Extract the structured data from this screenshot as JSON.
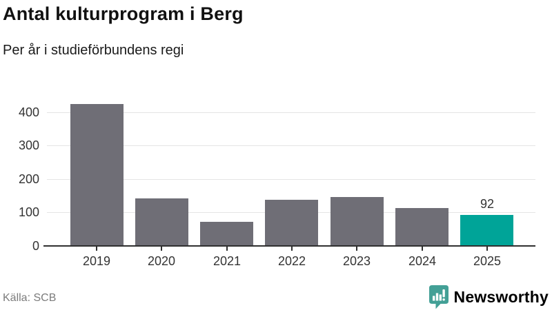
{
  "header": {
    "title": "Antal kulturprogram i Berg",
    "subtitle": "Per år i studieförbundens regi"
  },
  "chart_data": {
    "type": "bar",
    "title": "Antal kulturprogram i Berg",
    "subtitle": "Per år i studieförbundens regi",
    "categories": [
      "2019",
      "2020",
      "2021",
      "2022",
      "2023",
      "2024",
      "2025"
    ],
    "values": [
      424,
      143,
      72,
      139,
      146,
      113,
      92
    ],
    "yticks": [
      0,
      100,
      200,
      300,
      400
    ],
    "ylim": [
      0,
      447
    ],
    "grid": true,
    "legend": "none",
    "bar_color": "#6f6e76",
    "highlight_color": "#00a498",
    "highlight_index": 6,
    "value_labels": [
      {
        "index": 6,
        "text": "92"
      }
    ]
  },
  "colors": {
    "grid": "#e4e4e4",
    "axis": "#2f2f2f",
    "tick_label": "#333333",
    "title": "#111111",
    "source_text": "#7b7b7b",
    "brand_teal": "#3b9c91"
  },
  "footer": {
    "source": "Källa: SCB",
    "brand": "Newsworthy",
    "brand_icon": "newsworthy-speech-bubble-bar-chart-icon"
  }
}
